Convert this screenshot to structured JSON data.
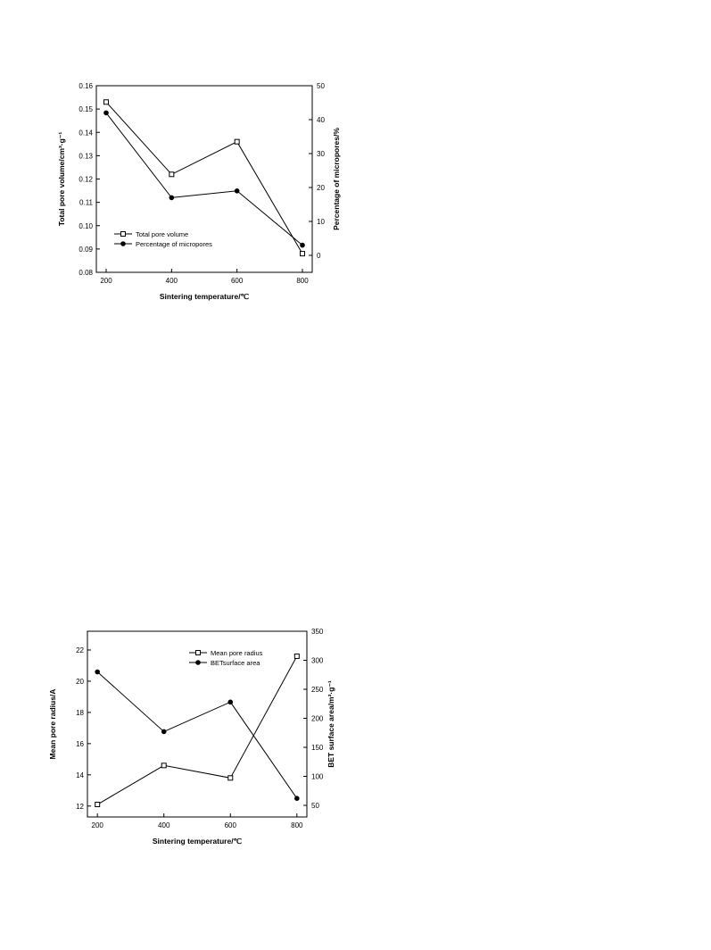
{
  "chart_data": [
    {
      "type": "line",
      "xlabel": "Sintering temperature/℃",
      "ylabel": "Total pore volume/cm³·g⁻¹",
      "y2label": "Percentage of micropores/%",
      "x": [
        200,
        400,
        600,
        800
      ],
      "xticks": [
        "200",
        "400",
        "600",
        "800"
      ],
      "xlim": [
        170,
        830
      ],
      "ylim": [
        0.08,
        0.16
      ],
      "yticks": [
        "0.08",
        "0.09",
        "0.10",
        "0.11",
        "0.12",
        "0.13",
        "0.14",
        "0.15",
        "0.16"
      ],
      "y2lim": [
        -5,
        50
      ],
      "y2ticks": [
        "0",
        "10",
        "20",
        "30",
        "40",
        "50"
      ],
      "legend_position": "lower-left",
      "series": [
        {
          "name": "Total pore volume",
          "axis": "left",
          "marker": "open-square",
          "values": [
            0.153,
            0.122,
            0.136,
            0.088
          ]
        },
        {
          "name": "Percentage of micropores",
          "axis": "right",
          "marker": "filled-circle",
          "values": [
            42,
            17,
            19,
            3
          ]
        }
      ]
    },
    {
      "type": "line",
      "xlabel": "Sintering temperature/℃",
      "ylabel": "Mean pore radius/A",
      "y2label": "BET surface area/m²·g⁻¹",
      "x": [
        200,
        400,
        600,
        800
      ],
      "xticks": [
        "200",
        "400",
        "600",
        "800"
      ],
      "xlim": [
        170,
        830
      ],
      "ylim": [
        11.3,
        23.2
      ],
      "yticks": [
        "12",
        "14",
        "16",
        "18",
        "20",
        "22"
      ],
      "y2lim": [
        30,
        350
      ],
      "y2ticks": [
        "50",
        "100",
        "150",
        "200",
        "250",
        "300",
        "350"
      ],
      "legend_position": "top-center",
      "series": [
        {
          "name": "Mean pore radius",
          "axis": "left",
          "marker": "open-square",
          "values": [
            12.1,
            14.6,
            13.8,
            21.6
          ]
        },
        {
          "name": "BETsurface area",
          "axis": "right",
          "marker": "filled-circle",
          "values": [
            280,
            177,
            228,
            62
          ]
        }
      ]
    }
  ]
}
